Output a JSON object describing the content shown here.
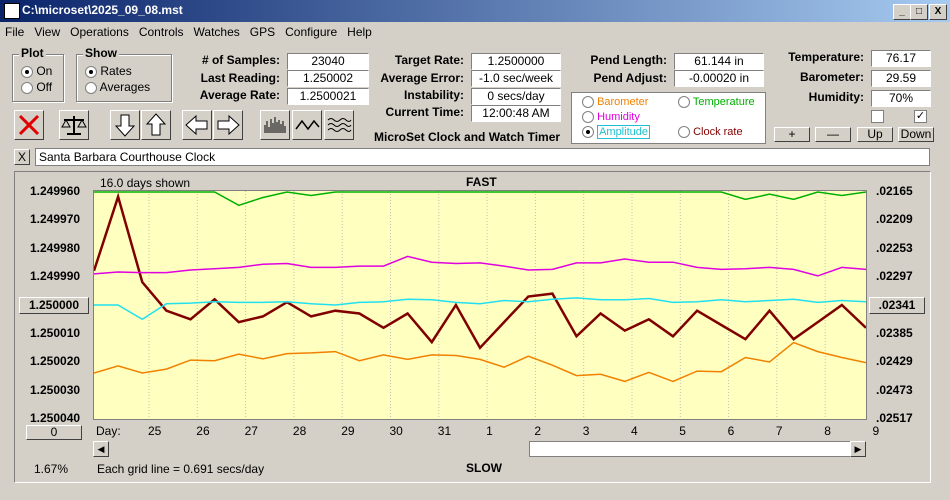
{
  "window": {
    "title": "C:\\microset\\2025_09_08.mst",
    "min": "_",
    "max": "□",
    "close": "X"
  },
  "menu": [
    "File",
    "View",
    "Operations",
    "Controls",
    "Watches",
    "GPS",
    "Configure",
    "Help"
  ],
  "plot": {
    "label": "Plot",
    "on": "On",
    "off": "Off"
  },
  "show": {
    "label": "Show",
    "rates": "Rates",
    "averages": "Averages"
  },
  "stats1": {
    "samples_label": "# of Samples:",
    "samples": "23040",
    "last_label": "Last Reading:",
    "last": "1.250002",
    "avg_label": "Average Rate:",
    "avg": "1.2500021"
  },
  "stats2": {
    "target_label": "Target Rate:",
    "target": "1.2500000",
    "error_label": "Average Error:",
    "error": "-1.0 sec/week",
    "instab_label": "Instability:",
    "instab": "0 secs/day",
    "time_label": "Current Time:",
    "time": "12:00:48 AM"
  },
  "pend": {
    "length_label": "Pend Length:",
    "length": "61.144 in",
    "adjust_label": "Pend Adjust:",
    "adjust": "-0.00020 in"
  },
  "env": {
    "temp_label": "Temperature:",
    "temp": "76.17",
    "baro_label": "Barometer:",
    "baro": "29.59",
    "hum_label": "Humidity:",
    "hum": "70%"
  },
  "series_select": {
    "barometer": "Barometer",
    "temperature": "Temperature",
    "humidity": "Humidity",
    "amplitude": "Amplitude",
    "clockrate": "Clock rate"
  },
  "adjust_buttons": {
    "plus": "+",
    "minus": "—",
    "up": "Up",
    "down": "Down"
  },
  "app_caption": "MicroSet Clock and Watch Timer",
  "clock_name": "Santa Barbara Courthouse Clock",
  "clear_x": "X",
  "graph": {
    "days_shown": "16.0 days shown",
    "fast": "FAST",
    "slow": "SLOW",
    "grid_note": "Each grid line = 0.691 secs/day",
    "zoom_pct": "1.67%",
    "left_btn": "0",
    "center_left": "1.250000",
    "center_right": ".02341",
    "day_label": "Day:",
    "days": [
      "25",
      "26",
      "27",
      "28",
      "29",
      "30",
      "31",
      "1",
      "2",
      "3",
      "4",
      "5",
      "6",
      "7",
      "8",
      "9"
    ],
    "left_ticks": [
      "1.249960",
      "1.249970",
      "1.249980",
      "1.249990",
      "",
      "1.250010",
      "1.250020",
      "1.250030",
      "1.250040"
    ],
    "right_ticks": [
      ".02165",
      ".02209",
      ".02253",
      ".02297",
      "",
      ".02385",
      ".02429",
      ".02473",
      ".02517"
    ]
  },
  "colors": {
    "clock_rate": "#800000",
    "temperature": "#00b000",
    "humidity": "#e000e0",
    "amplitude": "#20e0f0",
    "barometer": "#f08000",
    "plot_bg": "#ffffc0"
  },
  "chart_data": {
    "type": "line",
    "x": [
      0,
      0.5,
      1,
      1.5,
      2,
      2.5,
      3,
      3.5,
      4,
      4.5,
      5,
      5.5,
      6,
      6.5,
      7,
      7.5,
      8,
      8.5,
      9,
      9.5,
      10,
      10.5,
      11,
      11.5,
      12,
      12.5,
      13,
      13.5,
      14,
      14.5,
      15,
      15.5,
      16
    ],
    "series": [
      {
        "name": "Clock rate",
        "values": [
          1.249988,
          1.249962,
          1.249992,
          1.250002,
          1.250005,
          1.249998,
          1.250006,
          1.250004,
          1.249999,
          1.250004,
          1.250002,
          1.250003,
          1.250008,
          1.250003,
          1.250013,
          1.25,
          1.250015,
          1.250006,
          1.249997,
          1.249996,
          1.250011,
          1.250003,
          1.250009,
          1.250005,
          1.250011,
          1.250002,
          1.250007,
          1.250012,
          1.250002,
          1.250012,
          1.250006,
          1.25,
          1.250008
        ]
      },
      {
        "name": "Temperature",
        "values": [
          0.02165,
          0.02165,
          0.02165,
          0.02165,
          0.02165,
          0.02165,
          0.02187,
          0.02175,
          0.02165,
          0.02172,
          0.02165,
          0.02165,
          0.02165,
          0.02165,
          0.02165,
          0.02165,
          0.02165,
          0.02165,
          0.02165,
          0.02165,
          0.02165,
          0.02165,
          0.02165,
          0.02165,
          0.02165,
          0.02165,
          0.02165,
          0.02178,
          0.0217,
          0.02178,
          0.02165,
          0.02172,
          0.02165
        ]
      },
      {
        "name": "Humidity",
        "values": [
          0.02293,
          0.0229,
          0.02291,
          0.02291,
          0.02287,
          0.02285,
          0.02283,
          0.02278,
          0.02277,
          0.02283,
          0.02283,
          0.02281,
          0.02281,
          0.02266,
          0.02275,
          0.02277,
          0.02276,
          0.02281,
          0.02287,
          0.02286,
          0.02276,
          0.02276,
          0.0227,
          0.02275,
          0.02275,
          0.02283,
          0.02286,
          0.02285,
          0.02283,
          0.02286,
          0.02296,
          0.02283,
          0.02286
        ]
      },
      {
        "name": "Amplitude",
        "values": [
          0.02341,
          0.02341,
          0.02363,
          0.02339,
          0.02338,
          0.02336,
          0.02337,
          0.02337,
          0.02336,
          0.02339,
          0.02341,
          0.02337,
          0.02336,
          0.02332,
          0.02333,
          0.02337,
          0.02339,
          0.02334,
          0.02336,
          0.02332,
          0.0233,
          0.02333,
          0.02333,
          0.02331,
          0.02337,
          0.02336,
          0.02333,
          0.02336,
          0.02334,
          0.02332,
          0.02337,
          0.02334,
          0.02336
        ]
      },
      {
        "name": "Barometer",
        "values": [
          0.02446,
          0.02435,
          0.02446,
          0.0244,
          0.02426,
          0.02427,
          0.02417,
          0.02424,
          0.02416,
          0.02415,
          0.02413,
          0.02427,
          0.02418,
          0.02425,
          0.02418,
          0.02419,
          0.02425,
          0.02437,
          0.0242,
          0.02434,
          0.0245,
          0.02448,
          0.02459,
          0.02445,
          0.02459,
          0.02443,
          0.02444,
          0.02422,
          0.02429,
          0.02399,
          0.02413,
          0.02422,
          0.0243
        ]
      }
    ],
    "xlabel": "Day:",
    "ylim": [
      1.24996,
      1.25004
    ],
    "y2lim": [
      0.02165,
      0.02517
    ],
    "title": "FAST",
    "subtitle": "SLOW"
  }
}
